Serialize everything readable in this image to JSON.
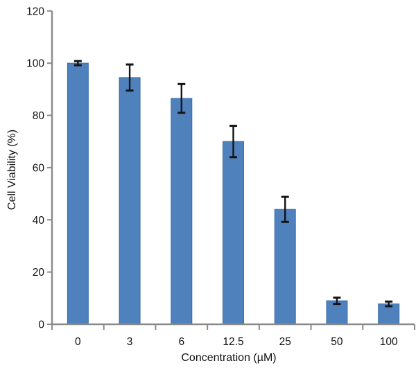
{
  "chart_data": {
    "type": "bar",
    "title": "",
    "categories": [
      "0",
      "3",
      "6",
      "12.5",
      "25",
      "50",
      "100"
    ],
    "values": [
      100,
      94.5,
      86.5,
      70,
      44,
      9,
      7.8
    ],
    "errors": [
      0.8,
      5,
      5.5,
      6,
      4.8,
      1.2,
      0.9
    ],
    "xlabel": "Concentration (µM)",
    "ylabel": "Cell Viability (%)",
    "ylim": [
      0,
      120
    ],
    "yticks": [
      0,
      20,
      40,
      60,
      80,
      100,
      120
    ],
    "grid": false,
    "legend": null,
    "bar_color": "#4f81bd",
    "bar_border_color": "#3a6ca8",
    "error_bar_color": "#141414",
    "axis_color": "#8a8a8a",
    "text_color": "#111111"
  }
}
